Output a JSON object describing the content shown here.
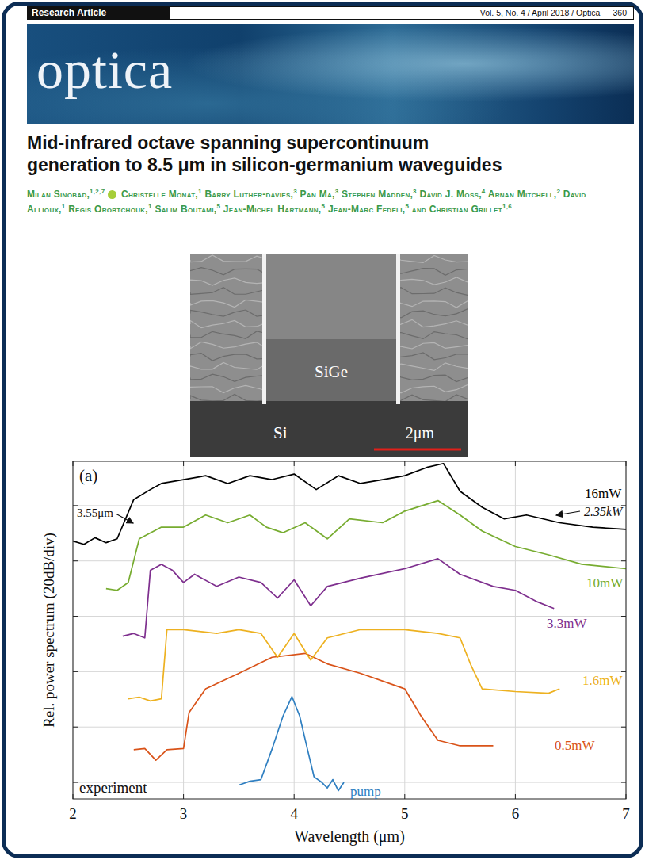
{
  "header": {
    "section": "Research Article",
    "citation": "Vol. 5, No. 4 / April 2018 / Optica",
    "page": "360"
  },
  "journal": "optica",
  "title": "Mid-infrared octave spanning supercontinuum generation to 8.5 μm in silicon-germanium waveguides",
  "authors": [
    {
      "name": "Milan Sinobad,",
      "affiliations": "1,2,7",
      "orcid": true
    },
    {
      "name": "Christelle Monat,",
      "affiliations": "1",
      "orcid": false
    },
    {
      "name": "Barry Luther-davies,",
      "affiliations": "3",
      "orcid": false
    },
    {
      "name": "Pan Ma,",
      "affiliations": "3",
      "orcid": false
    },
    {
      "name": "Stephen Madden,",
      "affiliations": "3",
      "orcid": false
    },
    {
      "name": "David J. Moss,",
      "affiliations": "4",
      "orcid": false
    },
    {
      "name": "Arnan Mitchell,",
      "affiliations": "2",
      "orcid": false
    },
    {
      "name": "David Allioux,",
      "affiliations": "1",
      "orcid": false
    },
    {
      "name": "Regis Orobtchouk,",
      "affiliations": "1",
      "orcid": false
    },
    {
      "name": "Salim Boutami,",
      "affiliations": "5",
      "orcid": false
    },
    {
      "name": "Jean-Michel Hartmann,",
      "affiliations": "5",
      "orcid": false
    },
    {
      "name": "Jean-Marc Fedeli,",
      "affiliations": "5",
      "orcid": false
    },
    {
      "name": "Christian Grillet",
      "affiliations": "1,6",
      "orcid": false
    }
  ],
  "conjunction": "and",
  "sem_image": {
    "core": "SiGe",
    "substrate": "Si",
    "scale_bar": "2μm"
  },
  "chart_data": {
    "type": "line",
    "panel": "(a)",
    "xlabel": "Wavelength (μm)",
    "ylabel": "Rel. power spectrum (20dB/div)",
    "xlim": [
      2,
      7
    ],
    "ylim": [
      -0.3,
      5.8
    ],
    "xticks": [
      2,
      3,
      4,
      5,
      6,
      7
    ],
    "yticks": [
      0,
      1,
      2,
      3,
      4,
      5
    ],
    "tick_labels": "x",
    "grid": true,
    "annotations": [
      "3.55μm",
      "2.35kW",
      "experiment"
    ],
    "series": [
      {
        "name": "pump",
        "color": "#2f7fc1",
        "x": [
          3.5,
          3.6,
          3.7,
          3.8,
          3.9,
          3.98,
          4.05,
          4.12,
          4.18,
          4.25,
          4.3,
          4.35,
          4.4,
          4.45
        ],
        "values": [
          -0.05,
          0.02,
          0.05,
          0.6,
          1.2,
          1.55,
          1.2,
          0.6,
          0.1,
          0.0,
          -0.1,
          0.05,
          -0.15,
          0.0
        ]
      },
      {
        "name": "0.5mW",
        "color": "#d95319",
        "x": [
          2.55,
          2.65,
          2.75,
          2.85,
          3.0,
          3.05,
          3.2,
          3.5,
          3.8,
          4.1,
          4.3,
          4.6,
          5.0,
          5.15,
          5.3,
          5.5,
          5.8
        ],
        "values": [
          0.59,
          0.61,
          0.4,
          0.59,
          0.61,
          1.26,
          1.69,
          1.97,
          2.26,
          2.33,
          2.14,
          1.97,
          1.69,
          1.19,
          0.76,
          0.66,
          0.66
        ]
      },
      {
        "name": "1.6mW",
        "color": "#edb120",
        "x": [
          2.5,
          2.6,
          2.7,
          2.8,
          2.85,
          3.0,
          3.3,
          3.5,
          3.7,
          3.85,
          4.0,
          4.15,
          4.3,
          4.6,
          5.0,
          5.3,
          5.5,
          5.6,
          5.7,
          6.0,
          6.3,
          6.4
        ],
        "values": [
          1.51,
          1.54,
          1.47,
          1.51,
          2.76,
          2.76,
          2.69,
          2.76,
          2.69,
          2.26,
          2.69,
          2.21,
          2.61,
          2.76,
          2.76,
          2.69,
          2.61,
          2.11,
          1.69,
          1.64,
          1.61,
          1.69
        ]
      },
      {
        "name": "3.3mW",
        "color": "#7e2f8e",
        "x": [
          2.45,
          2.55,
          2.65,
          2.7,
          2.8,
          2.9,
          3.0,
          3.1,
          3.3,
          3.5,
          3.7,
          3.85,
          4.0,
          4.15,
          4.3,
          4.6,
          5.0,
          5.3,
          5.5,
          5.8,
          6.0,
          6.2,
          6.35
        ],
        "values": [
          2.64,
          2.69,
          2.61,
          3.83,
          3.94,
          3.83,
          3.61,
          3.76,
          3.54,
          3.71,
          3.61,
          3.33,
          3.66,
          3.19,
          3.54,
          3.69,
          3.86,
          4.04,
          3.76,
          3.54,
          3.47,
          3.26,
          3.14
        ]
      },
      {
        "name": "10mW",
        "color": "#77ac30",
        "x": [
          2.3,
          2.4,
          2.5,
          2.6,
          2.8,
          3.0,
          3.2,
          3.4,
          3.6,
          3.75,
          3.9,
          4.1,
          4.3,
          4.5,
          4.8,
          5.0,
          5.3,
          5.5,
          5.7,
          6.0,
          6.3,
          6.6,
          7.0
        ],
        "values": [
          3.5,
          3.47,
          3.61,
          4.4,
          4.61,
          4.61,
          4.83,
          4.69,
          4.83,
          4.61,
          4.51,
          4.69,
          4.4,
          4.76,
          4.69,
          4.9,
          5.09,
          4.83,
          4.54,
          4.26,
          4.11,
          3.94,
          3.86
        ]
      },
      {
        "name": "16mW",
        "color": "#000000",
        "x": [
          2.0,
          2.1,
          2.2,
          2.3,
          2.4,
          2.55,
          2.7,
          2.8,
          3.0,
          3.2,
          3.4,
          3.6,
          3.8,
          4.0,
          4.2,
          4.4,
          4.6,
          4.8,
          5.0,
          5.2,
          5.35,
          5.5,
          5.7,
          5.9,
          6.1,
          6.4,
          6.7,
          7.0
        ],
        "values": [
          4.36,
          4.3,
          4.42,
          4.33,
          4.4,
          5.11,
          5.29,
          5.4,
          5.47,
          5.54,
          5.4,
          5.54,
          5.47,
          5.57,
          5.29,
          5.54,
          5.4,
          5.47,
          5.54,
          5.69,
          5.76,
          5.26,
          4.97,
          4.76,
          4.83,
          4.69,
          4.61,
          4.57
        ]
      }
    ]
  }
}
